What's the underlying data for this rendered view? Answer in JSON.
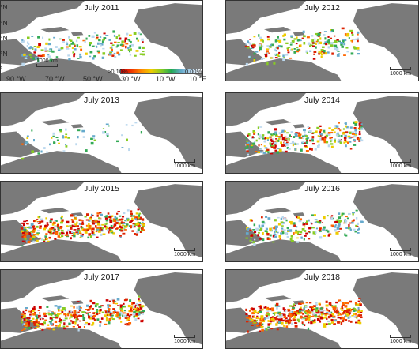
{
  "panels": [
    {
      "title": "July 2011",
      "scale_label": "1000 km",
      "intensity": 0.35
    },
    {
      "title": "July 2012",
      "scale_label": "1000 km",
      "intensity": 0.45
    },
    {
      "title": "July 2013",
      "scale_label": "1000 km",
      "intensity": 0.05
    },
    {
      "title": "July 2014",
      "scale_label": "1000 km",
      "intensity": 0.6
    },
    {
      "title": "July 2015",
      "scale_label": "1000 km",
      "intensity": 0.9
    },
    {
      "title": "July 2016",
      "scale_label": "1000 km",
      "intensity": 0.45
    },
    {
      "title": "July 2017",
      "scale_label": "1000 km",
      "intensity": 0.85
    },
    {
      "title": "July 2018",
      "scale_label": "1000 km",
      "intensity": 1.0
    }
  ],
  "lat_labels": [
    "°N",
    "°N",
    "°N",
    "°N",
    "°"
  ],
  "lon_labels": [
    "90 °W",
    "70 °W",
    "50 °W",
    "30 °W",
    "10 °W",
    "10 °E"
  ],
  "colorbar": {
    "min_label": ">0.10%",
    "max_label": "0.00%",
    "colors": [
      "#cc0000",
      "#ee3300",
      "#ff8800",
      "#eecc00",
      "#88cc22",
      "#22aa55",
      "#66aacc",
      "#bbd8ee",
      "#ffffff"
    ]
  },
  "colors": {
    "land": "#7a7a7a",
    "ocean": "#ffffff",
    "border": "#333333"
  }
}
